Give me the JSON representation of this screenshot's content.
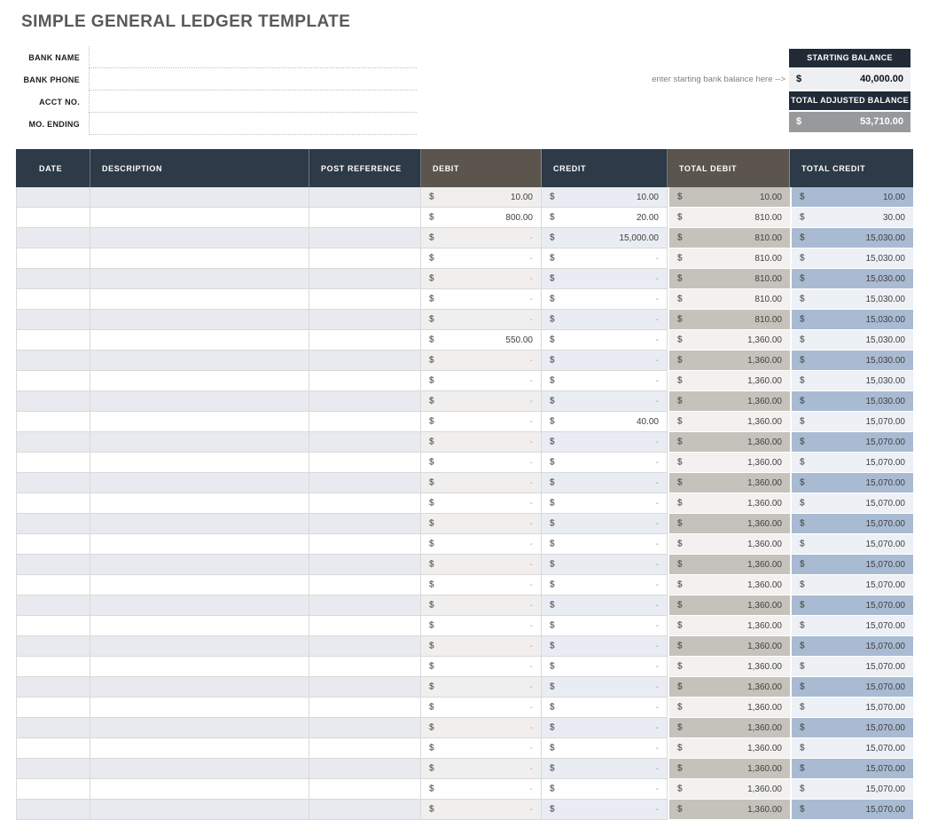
{
  "title": "SIMPLE GENERAL LEDGER TEMPLATE",
  "bank_info": {
    "fields": [
      {
        "label": "BANK NAME",
        "value": ""
      },
      {
        "label": "BANK PHONE",
        "value": ""
      },
      {
        "label": "ACCT NO.",
        "value": ""
      },
      {
        "label": "MO. ENDING",
        "value": ""
      }
    ]
  },
  "balance_panel": {
    "hint": "enter starting bank balance here -->",
    "starting_balance": {
      "label": "STARTING BALANCE",
      "currency": "$",
      "value": "40,000.00"
    },
    "total_adjusted_balance": {
      "label": "TOTAL ADJUSTED BALANCE",
      "currency": "$",
      "value": "53,710.00"
    }
  },
  "ledger_table": {
    "columns": [
      "DATE",
      "DESCRIPTION",
      "POST REFERENCE",
      "DEBIT",
      "CREDIT",
      "TOTAL DEBIT",
      "TOTAL CREDIT"
    ],
    "currency_symbol": "$",
    "rows": [
      {
        "date": "",
        "description": "",
        "post_reference": "",
        "debit": "10.00",
        "credit": "10.00",
        "total_debit": "10.00",
        "total_credit": "10.00"
      },
      {
        "date": "",
        "description": "",
        "post_reference": "",
        "debit": "800.00",
        "credit": "20.00",
        "total_debit": "810.00",
        "total_credit": "30.00"
      },
      {
        "date": "",
        "description": "",
        "post_reference": "",
        "debit": "-",
        "credit": "15,000.00",
        "total_debit": "810.00",
        "total_credit": "15,030.00"
      },
      {
        "date": "",
        "description": "",
        "post_reference": "",
        "debit": "-",
        "credit": "-",
        "total_debit": "810.00",
        "total_credit": "15,030.00"
      },
      {
        "date": "",
        "description": "",
        "post_reference": "",
        "debit": "-",
        "credit": "-",
        "total_debit": "810.00",
        "total_credit": "15,030.00"
      },
      {
        "date": "",
        "description": "",
        "post_reference": "",
        "debit": "-",
        "credit": "-",
        "total_debit": "810.00",
        "total_credit": "15,030.00"
      },
      {
        "date": "",
        "description": "",
        "post_reference": "",
        "debit": "-",
        "credit": "-",
        "total_debit": "810.00",
        "total_credit": "15,030.00"
      },
      {
        "date": "",
        "description": "",
        "post_reference": "",
        "debit": "550.00",
        "credit": "-",
        "total_debit": "1,360.00",
        "total_credit": "15,030.00"
      },
      {
        "date": "",
        "description": "",
        "post_reference": "",
        "debit": "-",
        "credit": "-",
        "total_debit": "1,360.00",
        "total_credit": "15,030.00"
      },
      {
        "date": "",
        "description": "",
        "post_reference": "",
        "debit": "-",
        "credit": "-",
        "total_debit": "1,360.00",
        "total_credit": "15,030.00"
      },
      {
        "date": "",
        "description": "",
        "post_reference": "",
        "debit": "-",
        "credit": "-",
        "total_debit": "1,360.00",
        "total_credit": "15,030.00"
      },
      {
        "date": "",
        "description": "",
        "post_reference": "",
        "debit": "-",
        "credit": "40.00",
        "total_debit": "1,360.00",
        "total_credit": "15,070.00"
      },
      {
        "date": "",
        "description": "",
        "post_reference": "",
        "debit": "-",
        "credit": "-",
        "total_debit": "1,360.00",
        "total_credit": "15,070.00"
      },
      {
        "date": "",
        "description": "",
        "post_reference": "",
        "debit": "-",
        "credit": "-",
        "total_debit": "1,360.00",
        "total_credit": "15,070.00"
      },
      {
        "date": "",
        "description": "",
        "post_reference": "",
        "debit": "-",
        "credit": "-",
        "total_debit": "1,360.00",
        "total_credit": "15,070.00"
      },
      {
        "date": "",
        "description": "",
        "post_reference": "",
        "debit": "-",
        "credit": "-",
        "total_debit": "1,360.00",
        "total_credit": "15,070.00"
      },
      {
        "date": "",
        "description": "",
        "post_reference": "",
        "debit": "-",
        "credit": "-",
        "total_debit": "1,360.00",
        "total_credit": "15,070.00"
      },
      {
        "date": "",
        "description": "",
        "post_reference": "",
        "debit": "-",
        "credit": "-",
        "total_debit": "1,360.00",
        "total_credit": "15,070.00"
      },
      {
        "date": "",
        "description": "",
        "post_reference": "",
        "debit": "-",
        "credit": "-",
        "total_debit": "1,360.00",
        "total_credit": "15,070.00"
      },
      {
        "date": "",
        "description": "",
        "post_reference": "",
        "debit": "-",
        "credit": "-",
        "total_debit": "1,360.00",
        "total_credit": "15,070.00"
      },
      {
        "date": "",
        "description": "",
        "post_reference": "",
        "debit": "-",
        "credit": "-",
        "total_debit": "1,360.00",
        "total_credit": "15,070.00"
      },
      {
        "date": "",
        "description": "",
        "post_reference": "",
        "debit": "-",
        "credit": "-",
        "total_debit": "1,360.00",
        "total_credit": "15,070.00"
      },
      {
        "date": "",
        "description": "",
        "post_reference": "",
        "debit": "-",
        "credit": "-",
        "total_debit": "1,360.00",
        "total_credit": "15,070.00"
      },
      {
        "date": "",
        "description": "",
        "post_reference": "",
        "debit": "-",
        "credit": "-",
        "total_debit": "1,360.00",
        "total_credit": "15,070.00"
      },
      {
        "date": "",
        "description": "",
        "post_reference": "",
        "debit": "-",
        "credit": "-",
        "total_debit": "1,360.00",
        "total_credit": "15,070.00"
      },
      {
        "date": "",
        "description": "",
        "post_reference": "",
        "debit": "-",
        "credit": "-",
        "total_debit": "1,360.00",
        "total_credit": "15,070.00"
      },
      {
        "date": "",
        "description": "",
        "post_reference": "",
        "debit": "-",
        "credit": "-",
        "total_debit": "1,360.00",
        "total_credit": "15,070.00"
      },
      {
        "date": "",
        "description": "",
        "post_reference": "",
        "debit": "-",
        "credit": "-",
        "total_debit": "1,360.00",
        "total_credit": "15,070.00"
      },
      {
        "date": "",
        "description": "",
        "post_reference": "",
        "debit": "-",
        "credit": "-",
        "total_debit": "1,360.00",
        "total_credit": "15,070.00"
      },
      {
        "date": "",
        "description": "",
        "post_reference": "",
        "debit": "-",
        "credit": "-",
        "total_debit": "1,360.00",
        "total_credit": "15,070.00"
      },
      {
        "date": "",
        "description": "",
        "post_reference": "",
        "debit": "-",
        "credit": "-",
        "total_debit": "1,360.00",
        "total_credit": "15,070.00"
      }
    ]
  },
  "colors": {
    "navy": "#2d3a47",
    "header_gray": "#5b554e",
    "panel_navy": "#202b37",
    "red": "#e23a2e",
    "text_dark": "#3f3f3f",
    "stripe_left": "#e8eaef",
    "stripe_debit": "#f0efee",
    "stripe_credit": "#e9edf3",
    "tdebit_odd": "#c5c2bc",
    "tdebit_even": "#f2f1ef",
    "tcredit_odd": "#a9bbd2",
    "tcredit_even": "#edf1f6"
  }
}
